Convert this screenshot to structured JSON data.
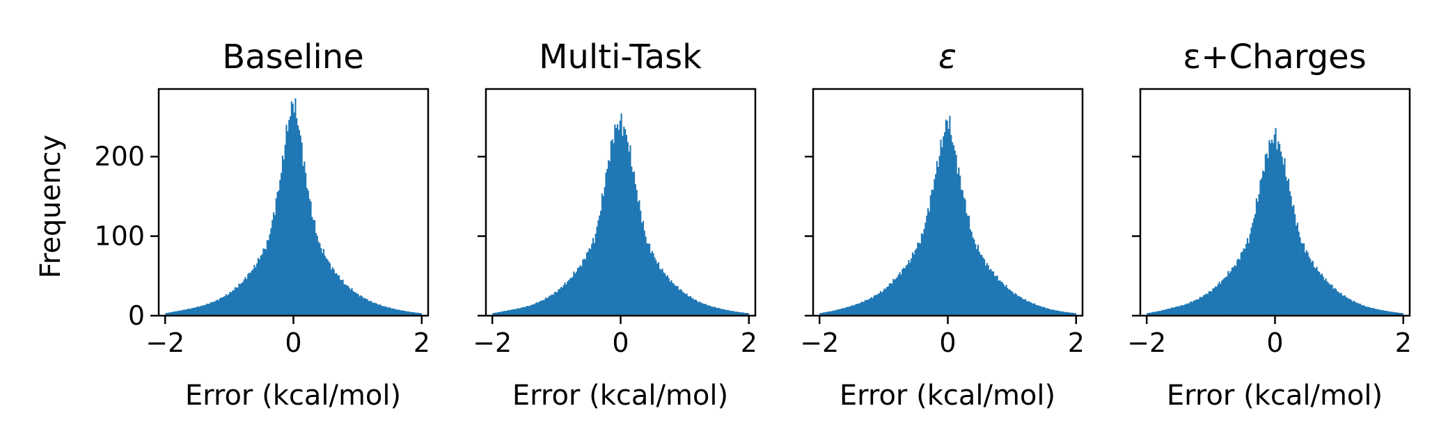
{
  "chart_data": [
    {
      "type": "bar",
      "title": "Baseline",
      "xlabel": "Error (kcal/mol)",
      "ylabel": "Frequency",
      "xlim": [
        -2.1,
        2.1
      ],
      "ylim": [
        0,
        285
      ],
      "xticks": [
        -2,
        0,
        2
      ],
      "xtick_labels": [
        "−2",
        "0",
        "2"
      ],
      "yticks": [
        0,
        100,
        200
      ],
      "ytick_labels": [
        "0",
        "100",
        "200"
      ],
      "x": [
        -2.0,
        -1.8,
        -1.6,
        -1.4,
        -1.2,
        -1.0,
        -0.8,
        -0.6,
        -0.4,
        -0.3,
        -0.2,
        -0.1,
        0.0,
        0.1,
        0.2,
        0.3,
        0.4,
        0.6,
        0.8,
        1.0,
        1.2,
        1.4,
        1.6,
        1.8,
        2.0
      ],
      "values": [
        3,
        6,
        9,
        13,
        19,
        28,
        42,
        62,
        92,
        130,
        175,
        235,
        272,
        230,
        170,
        125,
        90,
        60,
        40,
        27,
        18,
        12,
        8,
        5,
        3
      ]
    },
    {
      "type": "bar",
      "title": "Multi-Task",
      "xlabel": "Error (kcal/mol)",
      "ylabel": "",
      "xlim": [
        -2.1,
        2.1
      ],
      "ylim": [
        0,
        285
      ],
      "xticks": [
        -2,
        0,
        2
      ],
      "xtick_labels": [
        "−2",
        "0",
        "2"
      ],
      "yticks": [
        0,
        100,
        200
      ],
      "ytick_labels": [],
      "x": [
        -2.0,
        -1.8,
        -1.6,
        -1.4,
        -1.2,
        -1.0,
        -0.8,
        -0.6,
        -0.4,
        -0.3,
        -0.2,
        -0.1,
        0.0,
        0.1,
        0.2,
        0.3,
        0.4,
        0.6,
        0.8,
        1.0,
        1.2,
        1.4,
        1.6,
        1.8,
        2.0
      ],
      "values": [
        3,
        6,
        9,
        13,
        20,
        30,
        45,
        66,
        98,
        140,
        190,
        232,
        245,
        225,
        180,
        135,
        95,
        62,
        42,
        28,
        18,
        12,
        8,
        5,
        3
      ]
    },
    {
      "type": "bar",
      "title": "ε",
      "xlabel": "Error (kcal/mol)",
      "ylabel": "",
      "xlim": [
        -2.1,
        2.1
      ],
      "ylim": [
        0,
        285
      ],
      "xticks": [
        -2,
        0,
        2
      ],
      "xtick_labels": [
        "−2",
        "0",
        "2"
      ],
      "yticks": [
        0,
        100,
        200
      ],
      "ytick_labels": [],
      "x": [
        -2.0,
        -1.8,
        -1.6,
        -1.4,
        -1.2,
        -1.0,
        -0.8,
        -0.6,
        -0.4,
        -0.3,
        -0.2,
        -0.1,
        0.0,
        0.1,
        0.2,
        0.3,
        0.4,
        0.6,
        0.8,
        1.0,
        1.2,
        1.4,
        1.6,
        1.8,
        2.0
      ],
      "values": [
        3,
        6,
        10,
        15,
        22,
        32,
        48,
        68,
        100,
        135,
        175,
        215,
        250,
        210,
        168,
        130,
        95,
        65,
        45,
        30,
        20,
        13,
        8,
        5,
        3
      ]
    },
    {
      "type": "bar",
      "title": "ε+Charges",
      "xlabel": "Error (kcal/mol)",
      "ylabel": "",
      "xlim": [
        -2.1,
        2.1
      ],
      "ylim": [
        0,
        285
      ],
      "xticks": [
        -2,
        0,
        2
      ],
      "xtick_labels": [
        "−2",
        "0",
        "2"
      ],
      "yticks": [
        0,
        100,
        200
      ],
      "ytick_labels": [],
      "x": [
        -2.0,
        -1.8,
        -1.6,
        -1.4,
        -1.2,
        -1.0,
        -0.8,
        -0.6,
        -0.4,
        -0.3,
        -0.2,
        -0.1,
        0.0,
        0.1,
        0.2,
        0.3,
        0.4,
        0.6,
        0.8,
        1.0,
        1.2,
        1.4,
        1.6,
        1.8,
        2.0
      ],
      "values": [
        3,
        6,
        10,
        14,
        21,
        31,
        46,
        66,
        98,
        135,
        178,
        212,
        228,
        205,
        170,
        130,
        95,
        64,
        44,
        29,
        19,
        12,
        8,
        5,
        3
      ]
    }
  ],
  "colors": {
    "bar": "#1f77b4",
    "axes": "#000000"
  }
}
